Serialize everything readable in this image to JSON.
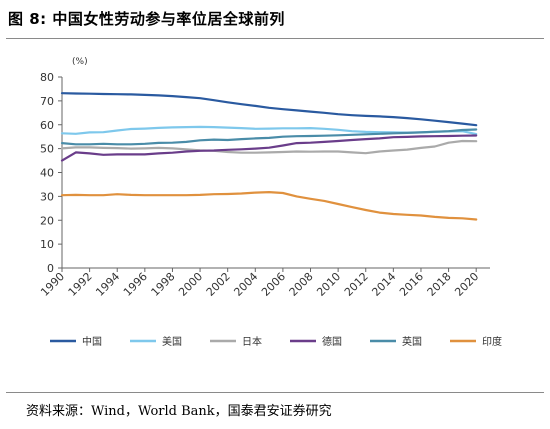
{
  "figure": {
    "title": "图 8: 中国女性劳动参与率位居全球前列",
    "source": "资料来源：Wind，World Bank，国泰君安证券研究"
  },
  "chart_data": {
    "type": "line",
    "title": "",
    "xlabel": "",
    "ylabel": "",
    "unit_label": "(%)",
    "ylim": [
      0,
      80
    ],
    "yticks": [
      0,
      10,
      20,
      30,
      40,
      50,
      60,
      70,
      80
    ],
    "xlim": [
      1990,
      2021
    ],
    "xticks": [
      1990,
      1992,
      1994,
      1996,
      1998,
      2000,
      2002,
      2004,
      2006,
      2008,
      2010,
      2012,
      2014,
      2016,
      2018,
      2020
    ],
    "grid": false,
    "legend_position": "bottom",
    "x": [
      1990,
      1991,
      1992,
      1993,
      1994,
      1995,
      1996,
      1997,
      1998,
      1999,
      2000,
      2001,
      2002,
      2003,
      2004,
      2005,
      2006,
      2007,
      2008,
      2009,
      2010,
      2011,
      2012,
      2013,
      2014,
      2015,
      2016,
      2017,
      2018,
      2019,
      2020
    ],
    "series": [
      {
        "name": "中国",
        "color": "#2a5aa0",
        "values": [
          73.2,
          73.1,
          73.0,
          72.9,
          72.8,
          72.7,
          72.5,
          72.3,
          72.0,
          71.6,
          71.1,
          70.3,
          69.4,
          68.6,
          67.9,
          67.1,
          66.5,
          66.0,
          65.5,
          65.0,
          64.4,
          64.0,
          63.7,
          63.5,
          63.2,
          62.8,
          62.3,
          61.7,
          61.1,
          60.5,
          59.8
        ]
      },
      {
        "name": "美国",
        "color": "#7ec8ec",
        "values": [
          56.4,
          56.2,
          56.8,
          56.9,
          57.6,
          58.2,
          58.4,
          58.7,
          58.9,
          59.0,
          59.1,
          59.0,
          58.8,
          58.6,
          58.3,
          58.4,
          58.5,
          58.5,
          58.6,
          58.3,
          57.9,
          57.3,
          57.0,
          56.9,
          56.8,
          56.7,
          56.8,
          57.0,
          57.2,
          57.3,
          56.1
        ]
      },
      {
        "name": "日本",
        "color": "#aaaaaa",
        "values": [
          50.1,
          50.5,
          50.5,
          50.3,
          50.2,
          50.0,
          50.1,
          50.3,
          50.1,
          49.7,
          49.3,
          49.1,
          48.6,
          48.3,
          48.3,
          48.4,
          48.6,
          48.8,
          48.7,
          48.8,
          48.8,
          48.4,
          48.1,
          48.8,
          49.2,
          49.6,
          50.3,
          50.9,
          52.5,
          53.2,
          53.1
        ]
      },
      {
        "name": "德国",
        "color": "#6a3d8a",
        "values": [
          45.0,
          48.4,
          48.0,
          47.4,
          47.6,
          47.6,
          47.6,
          48.0,
          48.3,
          48.8,
          49.1,
          49.2,
          49.5,
          49.7,
          50.0,
          50.4,
          51.3,
          52.3,
          52.5,
          52.8,
          53.2,
          53.6,
          54.0,
          54.3,
          54.8,
          54.9,
          55.1,
          55.2,
          55.3,
          55.4,
          55.5
        ]
      },
      {
        "name": "英国",
        "color": "#4a8ca8",
        "values": [
          52.3,
          51.8,
          51.8,
          52.0,
          51.8,
          51.8,
          52.0,
          52.4,
          52.5,
          52.8,
          53.5,
          53.8,
          53.6,
          54.0,
          54.3,
          54.5,
          55.0,
          55.2,
          55.3,
          55.4,
          55.6,
          55.8,
          56.0,
          56.2,
          56.4,
          56.6,
          56.8,
          57.1,
          57.3,
          57.8,
          58.0
        ]
      },
      {
        "name": "印度",
        "color": "#e0913e",
        "values": [
          30.5,
          30.6,
          30.5,
          30.5,
          30.9,
          30.6,
          30.5,
          30.5,
          30.5,
          30.5,
          30.6,
          30.9,
          31.0,
          31.2,
          31.6,
          31.8,
          31.4,
          30.0,
          29.0,
          28.1,
          26.8,
          25.5,
          24.3,
          23.2,
          22.6,
          22.3,
          22.0,
          21.4,
          21.0,
          20.8,
          20.3
        ]
      }
    ]
  }
}
